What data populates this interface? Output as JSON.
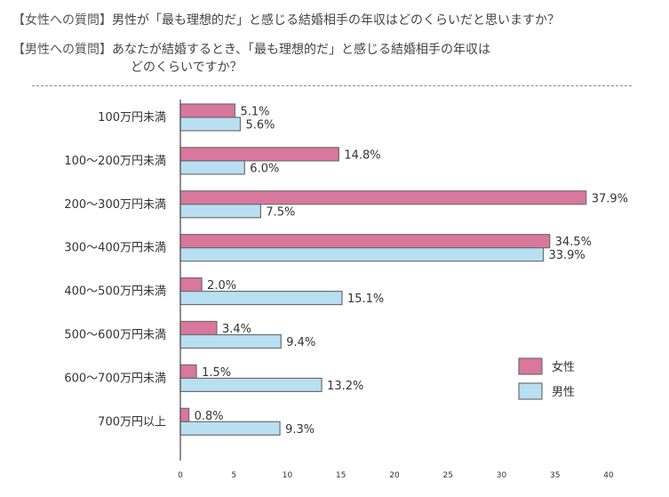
{
  "questions": {
    "female_label": "【女性への質問】",
    "female_text": "男性が「最も理想的だ」と感じる結婚相手の年収はどのくらいだと思いますか？",
    "male_label": "【男性への質問】",
    "male_text_line1": "あなたが結婚するとき、「最も理想的だ」と感じる結婚相手の年収は",
    "male_text_line2": "どのくらいですか？"
  },
  "chart_data": {
    "type": "bar",
    "orientation": "horizontal",
    "categories": [
      "100万円未満",
      "100～200万円未満",
      "200～300万円未満",
      "300～400万円未満",
      "400～500万円未満",
      "500～600万円未満",
      "600～700万円未満",
      "700万円以上"
    ],
    "series": [
      {
        "name": "女性",
        "color": "#d9779d",
        "values": [
          5.1,
          14.8,
          37.9,
          34.5,
          2.0,
          3.4,
          1.5,
          0.8
        ],
        "labels": [
          "5.1%",
          "14.8%",
          "37.9%",
          "34.5%",
          "2.0%",
          "3.4%",
          "1.5%",
          "0.8%"
        ]
      },
      {
        "name": "男性",
        "color": "#b9dff2",
        "values": [
          5.6,
          6.0,
          7.5,
          33.9,
          15.1,
          9.4,
          13.2,
          9.3
        ],
        "labels": [
          "5.6%",
          "6.0%",
          "7.5%",
          "33.9%",
          "15.1%",
          "9.4%",
          "13.2%",
          "9.3%"
        ]
      }
    ],
    "xlim": [
      0,
      40
    ],
    "xticks": [
      "0",
      "5",
      "10",
      "15",
      "20",
      "25",
      "30",
      "35",
      "40"
    ],
    "legend_position": "bottom-right",
    "grid": false,
    "bar_stroke": "#6e6e6e"
  }
}
